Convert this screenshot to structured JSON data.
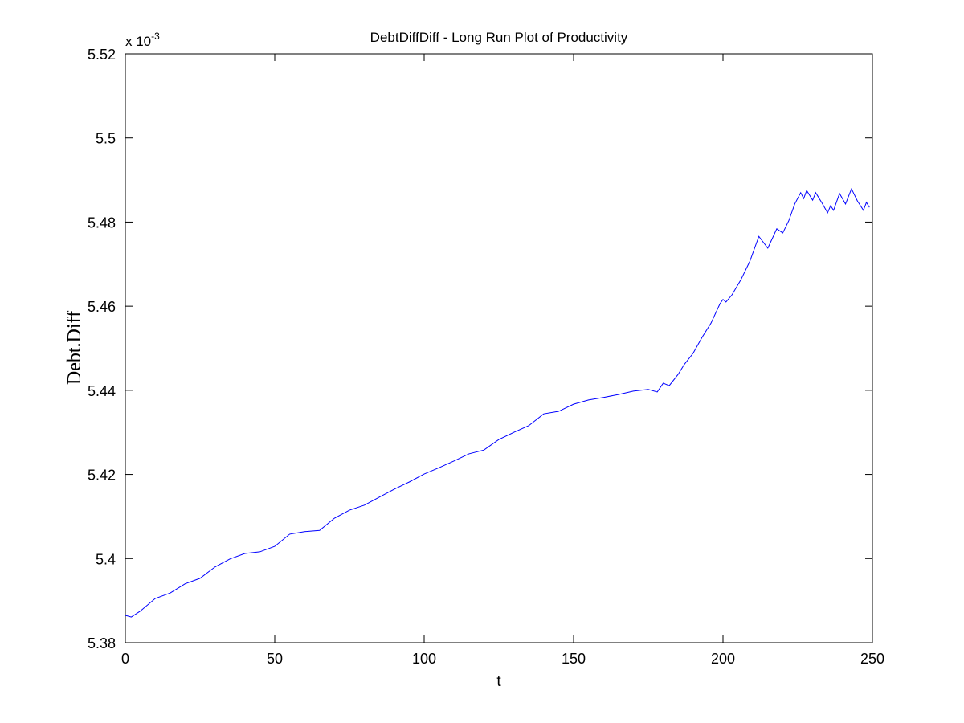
{
  "chart_data": {
    "type": "line",
    "title": "DebtDiffDiff - Long Run Plot of Productivity",
    "x_label": "t",
    "y_label": "Debt.Diff",
    "y_multiplier": {
      "base": "x 10",
      "exponent": "-3"
    },
    "x": [
      0,
      2,
      5,
      10,
      15,
      20,
      25,
      30,
      35,
      40,
      45,
      50,
      55,
      60,
      65,
      70,
      75,
      80,
      85,
      90,
      95,
      100,
      105,
      110,
      115,
      120,
      125,
      130,
      135,
      140,
      145,
      150,
      155,
      160,
      165,
      170,
      175,
      178,
      180,
      182,
      185,
      187,
      190,
      193,
      196,
      199,
      200,
      201,
      203,
      206,
      209,
      212,
      215,
      218,
      220,
      222,
      224,
      226,
      227,
      228,
      230,
      231,
      233,
      235,
      236,
      237,
      239,
      241,
      243,
      245,
      247,
      248,
      249
    ],
    "series": [
      {
        "name": "DebtDiffDiff",
        "color": "#0000ff",
        "values": [
          5.3865,
          5.3861,
          5.3875,
          5.3905,
          5.3918,
          5.394,
          5.3953,
          5.398,
          5.3999,
          5.4012,
          5.4016,
          5.4029,
          5.4058,
          5.4064,
          5.4067,
          5.4096,
          5.4115,
          5.4127,
          5.4146,
          5.4165,
          5.4182,
          5.4201,
          5.4216,
          5.4232,
          5.4249,
          5.4258,
          5.4283,
          5.43,
          5.4316,
          5.4344,
          5.435,
          5.4367,
          5.4377,
          5.4383,
          5.439,
          5.4398,
          5.4402,
          5.4396,
          5.4417,
          5.4411,
          5.4438,
          5.4461,
          5.4488,
          5.4526,
          5.456,
          5.4606,
          5.4616,
          5.461,
          5.4627,
          5.4663,
          5.4707,
          5.4766,
          5.4738,
          5.4784,
          5.4774,
          5.4803,
          5.4843,
          5.487,
          5.4856,
          5.4875,
          5.4852,
          5.487,
          5.4847,
          5.4822,
          5.4839,
          5.4828,
          5.4868,
          5.4843,
          5.4879,
          5.485,
          5.4828,
          5.4847,
          5.4835
        ]
      }
    ],
    "xlim": [
      0,
      250
    ],
    "xticks": [
      0,
      50,
      100,
      150,
      200,
      250
    ],
    "ylim": [
      5.38,
      5.52
    ],
    "yticks": [
      5.38,
      5.4,
      5.42,
      5.44,
      5.46,
      5.48,
      5.5,
      5.52
    ],
    "grid": false
  }
}
